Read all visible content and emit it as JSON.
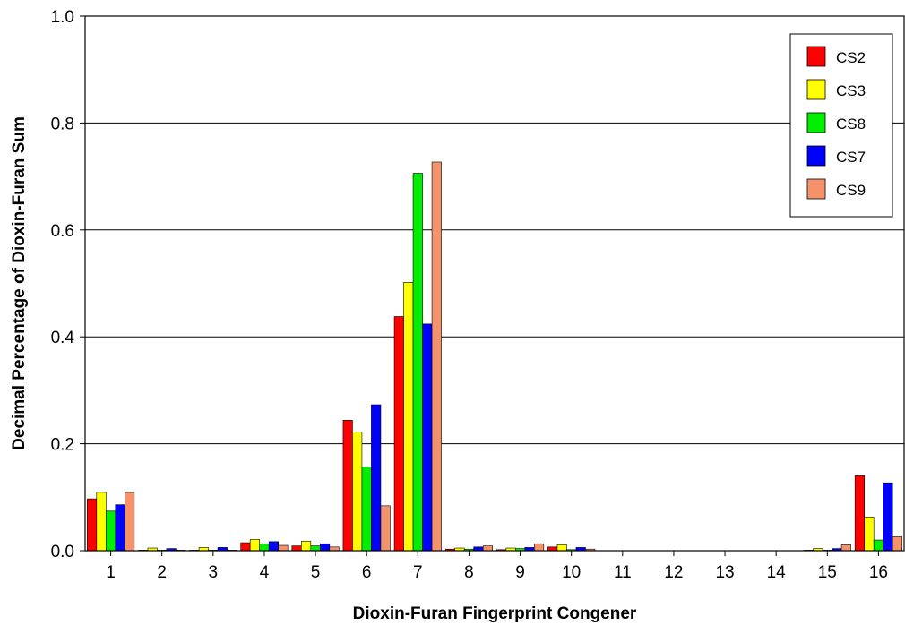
{
  "chart_data": {
    "type": "bar",
    "title": "",
    "xlabel": "Dioxin-Furan Fingerprint Congener",
    "ylabel": "Decimal Percentage of Dioxin-Furan Sum",
    "ylim": [
      0,
      1.0
    ],
    "yticks": [
      "0.0",
      "0.2",
      "0.4",
      "0.6",
      "0.8",
      "1.0"
    ],
    "ytick_values": [
      0,
      0.2,
      0.4,
      0.6,
      0.8,
      1.0
    ],
    "grid": "horizontal",
    "legend_position": "top-right",
    "categories": [
      "1",
      "2",
      "3",
      "4",
      "5",
      "6",
      "7",
      "8",
      "9",
      "10",
      "11",
      "12",
      "13",
      "14",
      "15",
      "16"
    ],
    "series": [
      {
        "name": "CS2",
        "color": "#ff0000",
        "values": [
          0.097,
          0.001,
          0.001,
          0.015,
          0.009,
          0.244,
          0.438,
          0.003,
          0.002,
          0.007,
          0.0,
          0.0,
          0.0,
          0.0,
          0.001,
          0.14
        ]
      },
      {
        "name": "CS3",
        "color": "#ffff00",
        "values": [
          0.109,
          0.005,
          0.006,
          0.021,
          0.018,
          0.222,
          0.502,
          0.005,
          0.005,
          0.011,
          0.0,
          0.0,
          0.0,
          0.0,
          0.004,
          0.063
        ]
      },
      {
        "name": "CS8",
        "color": "#00ee00",
        "values": [
          0.074,
          0.001,
          0.001,
          0.013,
          0.009,
          0.157,
          0.706,
          0.003,
          0.004,
          0.002,
          0.0,
          0.0,
          0.0,
          0.0,
          0.001,
          0.02
        ]
      },
      {
        "name": "CS7",
        "color": "#0000ff",
        "values": [
          0.086,
          0.004,
          0.006,
          0.017,
          0.013,
          0.273,
          0.424,
          0.007,
          0.006,
          0.006,
          0.0,
          0.0,
          0.0,
          0.0,
          0.004,
          0.127
        ]
      },
      {
        "name": "CS9",
        "color": "#f4926c",
        "values": [
          0.109,
          0.001,
          0.001,
          0.01,
          0.007,
          0.084,
          0.727,
          0.009,
          0.013,
          0.003,
          0.0,
          0.0,
          0.0,
          0.0,
          0.011,
          0.026
        ]
      }
    ]
  }
}
